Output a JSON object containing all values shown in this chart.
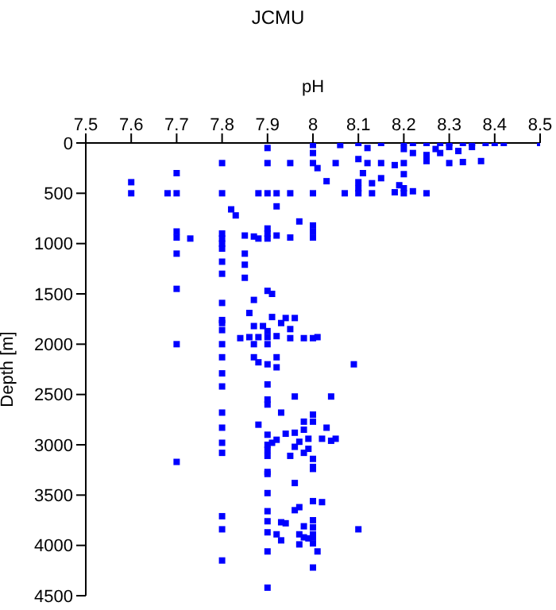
{
  "chart_data": {
    "type": "scatter",
    "title": "JCMU",
    "xlabel": "pH",
    "ylabel": "Depth [m]",
    "xlim": [
      7.5,
      8.5
    ],
    "xticks": [
      7.5,
      7.6,
      7.7,
      7.8,
      7.9,
      8,
      8.1,
      8.2,
      8.3,
      8.4,
      8.5
    ],
    "ylim": [
      4500,
      0
    ],
    "yticks": [
      0,
      500,
      1000,
      1500,
      2000,
      2500,
      3000,
      3500,
      4000,
      4500
    ],
    "grid": false,
    "legend": false,
    "marker": "square",
    "series": [
      {
        "color": "#0000ff",
        "x": [
          8.1,
          8.15,
          8.2,
          8.22,
          8.25,
          8.28,
          8.3,
          8.33,
          8.35,
          8.38,
          8.4,
          8.42,
          8.5,
          8.25,
          8.3,
          8.35,
          8.2,
          8.27,
          8.32,
          8.12,
          8.0,
          7.9,
          8.06,
          8.22,
          8.28,
          8.2,
          8.25,
          8.3,
          8.33,
          8.37,
          8.1,
          8.12,
          8.15,
          8.05,
          8.0,
          7.95,
          7.9,
          7.8,
          8.01,
          8.18,
          7.7,
          8.11,
          8.0,
          8.03,
          7.6,
          8.1,
          8.15,
          8.2,
          8.13,
          8.19,
          7.6,
          7.68,
          7.7,
          7.8,
          7.88,
          7.9,
          7.92,
          7.95,
          8.0,
          8.07,
          8.1,
          8.1,
          8.13,
          8.18,
          8.2,
          8.22,
          8.25,
          8.2,
          7.7,
          7.7,
          7.73,
          7.8,
          7.8,
          7.8,
          7.85,
          7.87,
          7.88,
          7.9,
          7.9,
          7.92,
          7.95,
          8.0,
          8.0,
          7.7,
          7.8,
          7.85,
          7.85,
          7.8,
          7.9,
          7.82,
          7.83,
          7.92,
          7.97,
          8.0,
          7.7,
          7.8,
          7.85,
          7.9,
          7.91,
          7.87,
          7.8,
          7.86,
          7.91,
          7.94,
          7.96,
          7.8,
          7.8,
          7.93,
          7.87,
          7.89,
          7.8,
          7.9,
          7.95,
          7.84,
          7.86,
          7.88,
          7.9,
          7.92,
          7.95,
          7.98,
          8.0,
          8.01,
          7.8,
          7.7,
          7.87,
          7.9,
          7.87,
          7.92,
          7.8,
          7.88,
          7.92,
          8.09,
          7.8,
          7.9,
          7.8,
          7.96,
          8.04,
          7.9,
          7.8,
          7.93,
          8.0,
          7.98,
          8.0,
          7.88,
          7.8,
          8.03,
          7.98,
          7.96,
          7.94,
          7.99,
          8.02,
          8.05,
          7.92,
          7.8,
          7.91,
          7.97,
          8.04,
          7.96,
          7.99,
          7.8,
          7.98,
          7.9,
          7.95,
          8.0,
          7.7,
          8.0,
          7.9,
          7.9,
          7.9,
          7.9,
          7.9,
          7.9,
          8.0,
          7.9,
          7.96,
          7.9,
          8.0,
          8.02,
          7.9,
          7.96,
          7.97,
          7.8,
          7.9,
          7.93,
          7.94,
          8.0,
          8.0,
          7.98,
          7.8,
          8.1,
          7.9,
          7.92,
          7.97,
          8.0,
          7.98,
          7.99,
          8.0,
          7.93,
          8.0,
          7.97,
          7.9,
          8.01,
          7.8,
          8.0,
          7.9
        ],
        "values": [
          0,
          0,
          0,
          0,
          0,
          0,
          0,
          0,
          0,
          0,
          0,
          0,
          0,
          120,
          40,
          40,
          60,
          60,
          80,
          50,
          20,
          50,
          20,
          100,
          100,
          200,
          180,
          200,
          190,
          180,
          160,
          200,
          200,
          200,
          200,
          200,
          200,
          200,
          250,
          220,
          300,
          300,
          100,
          380,
          390,
          390,
          350,
          310,
          400,
          420,
          500,
          500,
          500,
          500,
          500,
          500,
          500,
          500,
          500,
          500,
          500,
          450,
          500,
          490,
          500,
          480,
          500,
          450,
          880,
          940,
          950,
          950,
          900,
          1000,
          920,
          930,
          950,
          950,
          900,
          920,
          940,
          880,
          940,
          1100,
          1180,
          1100,
          1210,
          1050,
          850,
          660,
          720,
          630,
          780,
          820,
          1450,
          1300,
          1340,
          1470,
          1500,
          1560,
          1590,
          1690,
          1730,
          1740,
          1740,
          1760,
          1790,
          1790,
          1820,
          1820,
          1860,
          1870,
          1850,
          1940,
          1930,
          1930,
          1930,
          1920,
          1940,
          1940,
          1940,
          1930,
          2000,
          2000,
          2000,
          2000,
          2130,
          2130,
          2130,
          2180,
          2230,
          2200,
          2290,
          2400,
          2420,
          2520,
          2520,
          2550,
          2680,
          2680,
          2700,
          2770,
          2770,
          2800,
          2830,
          2830,
          2850,
          2880,
          2890,
          2940,
          2940,
          2940,
          2950,
          2980,
          2980,
          2970,
          2960,
          3020,
          3040,
          3080,
          3080,
          3110,
          3110,
          3140,
          3170,
          3220,
          3270,
          2200,
          2600,
          2900,
          3000,
          3050,
          3240,
          3290,
          3380,
          3480,
          3560,
          3570,
          3660,
          3650,
          3620,
          3710,
          3760,
          3770,
          3780,
          3750,
          3820,
          3810,
          3840,
          3840,
          3870,
          3890,
          3890,
          3890,
          3920,
          3930,
          3920,
          3950,
          3980,
          3990,
          4060,
          4060,
          4150,
          4220,
          4420
        ]
      }
    ]
  }
}
